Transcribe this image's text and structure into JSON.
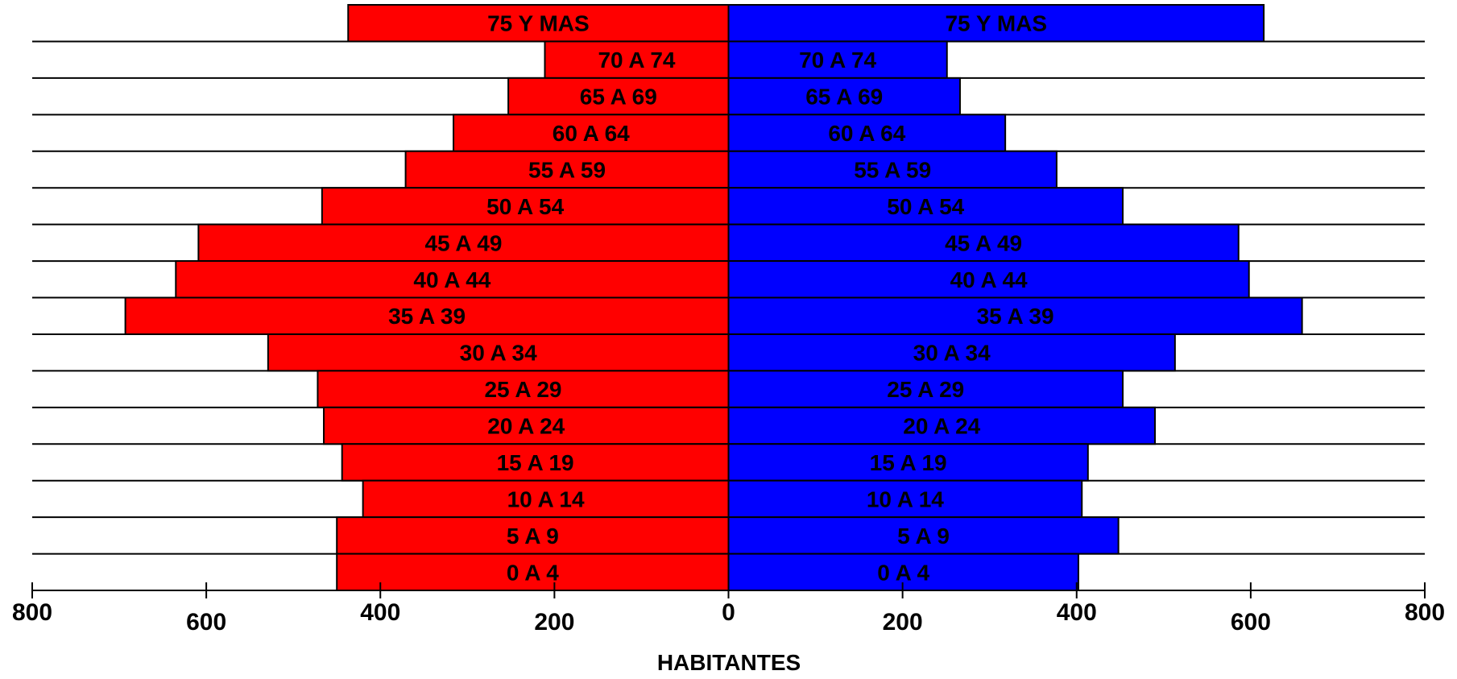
{
  "chart_data": {
    "type": "bar",
    "orientation": "horizontal",
    "subtype": "population-pyramid",
    "xlabel": "HABITANTES",
    "xlim": [
      -800,
      800
    ],
    "x_ticks": [
      -800,
      -600,
      -400,
      -200,
      0,
      200,
      400,
      600,
      800
    ],
    "x_tick_labels": [
      "800",
      "600",
      "400",
      "200",
      "0",
      "200",
      "400",
      "600",
      "800"
    ],
    "categories": [
      "75 Y MAS",
      "70 A 74",
      "65 A 69",
      "60 A 64",
      "55 A 59",
      "50 A 54",
      "45 A 49",
      "40 A 44",
      "35 A 39",
      "30 A 34",
      "25 A 29",
      "20 A 24",
      "15 A 19",
      "10 A 14",
      "5  A  9",
      "0  A  4"
    ],
    "series": [
      {
        "side": "left",
        "color": "#ff0000",
        "values": [
          437,
          211,
          253,
          316,
          371,
          467,
          609,
          635,
          693,
          529,
          472,
          465,
          444,
          420,
          450,
          450
        ]
      },
      {
        "side": "right",
        "color": "#0000ff",
        "values": [
          615,
          251,
          266,
          318,
          377,
          453,
          586,
          598,
          659,
          513,
          453,
          490,
          413,
          406,
          448,
          402
        ]
      }
    ],
    "grid": true,
    "legend": "none"
  }
}
